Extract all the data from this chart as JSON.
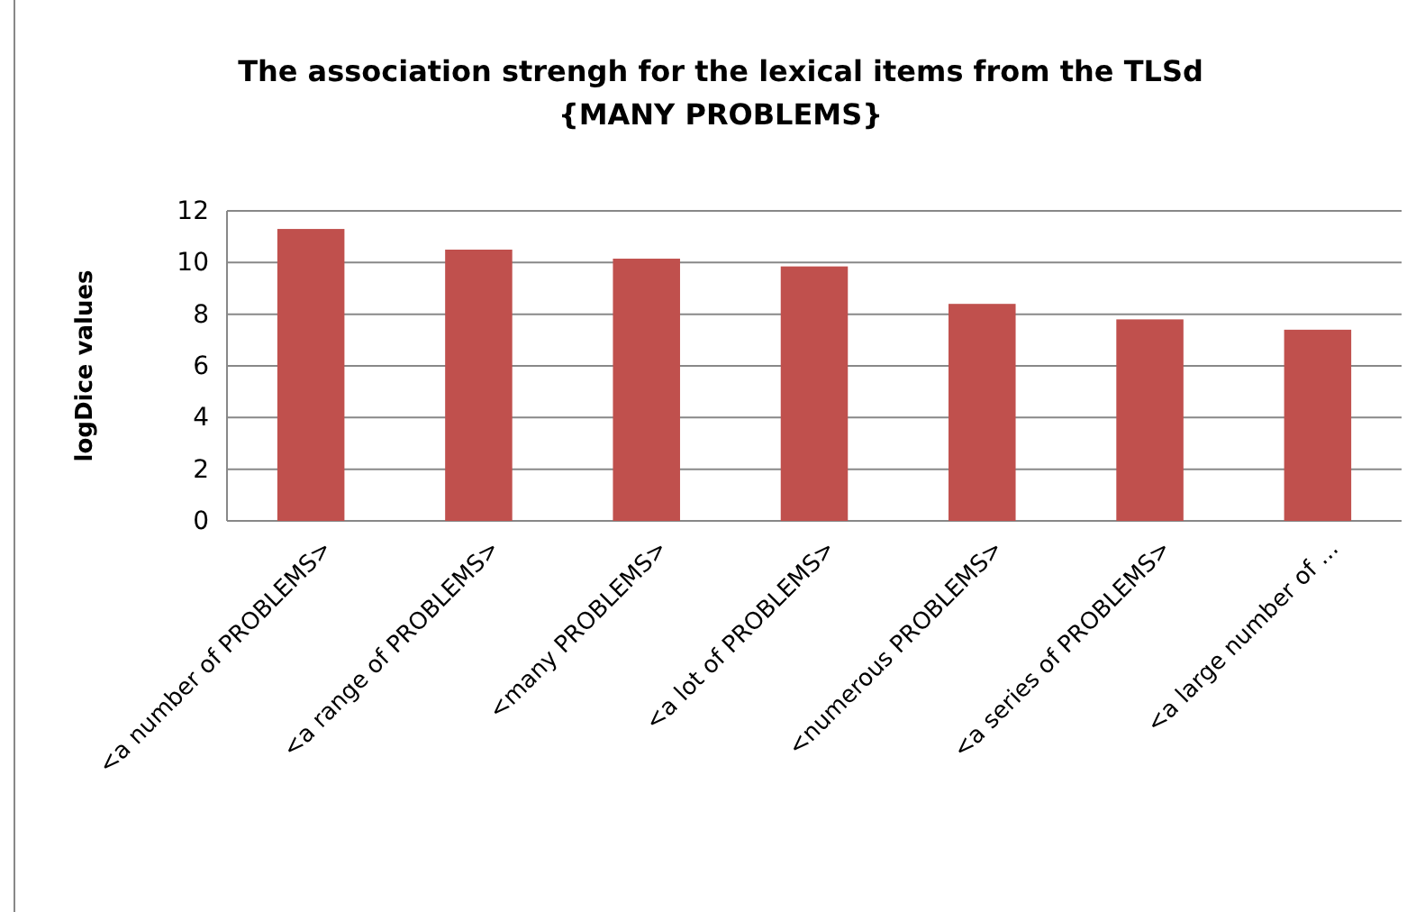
{
  "chart_data": {
    "type": "bar",
    "title": "The association strengh for the lexical items from the TLSd\n{MANY PROBLEMS}",
    "ylabel": "logDice values",
    "categories": [
      "<a number of PROBLEMS>",
      "<a range of PROBLEMS>",
      "<many PROBLEMS>",
      "<a lot of PROBLEMS>",
      "<numerous PROBLEMS>",
      "<a series of PROBLEMS>",
      "<a large number of ..."
    ],
    "values": [
      11.3,
      10.5,
      10.15,
      9.85,
      8.4,
      7.8,
      7.4
    ],
    "color": "#c0504d",
    "ylim": [
      0,
      12
    ],
    "yticks": [
      0,
      2,
      4,
      6,
      8,
      10,
      12
    ],
    "grid": "y"
  }
}
